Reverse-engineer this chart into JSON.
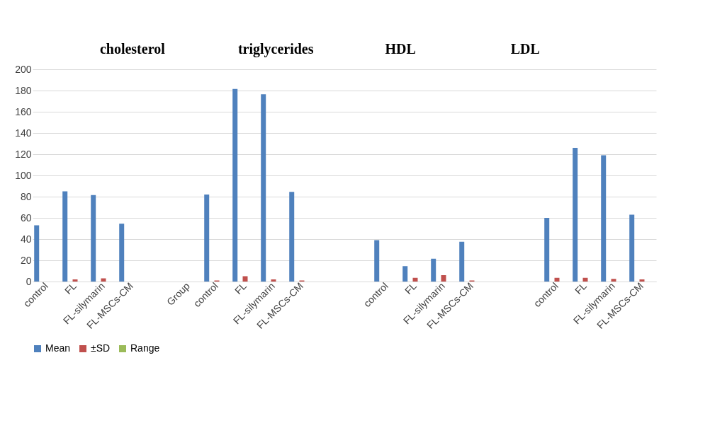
{
  "chart_data": {
    "type": "bar",
    "categories": [
      "control",
      "FL",
      "FL-silymarin",
      "FL-MSCs-CM",
      null,
      "Group",
      "control",
      "FL",
      "FL-silymarin",
      "FL-MSCs-CM",
      null,
      null,
      "control",
      "FL",
      "FL-silymarin",
      "FL-MSCs-CM",
      null,
      null,
      "control",
      "FL",
      "FL-silymarin",
      "FL-MSCs-CM"
    ],
    "series": [
      {
        "name": "Mean",
        "color": "#4f81bd",
        "values": [
          53,
          85,
          81.5,
          54.5,
          null,
          null,
          82,
          181.5,
          176.5,
          84.5,
          null,
          null,
          39,
          14.5,
          21.5,
          37.5,
          null,
          null,
          60,
          126,
          119,
          63
        ]
      },
      {
        "name": "±SD",
        "color": "#c0504d",
        "values": [
          null,
          2,
          3,
          null,
          null,
          null,
          1,
          5,
          2,
          1,
          null,
          null,
          null,
          3.5,
          6,
          1,
          null,
          null,
          3.5,
          3.5,
          2.5,
          2
        ]
      },
      {
        "name": "Range",
        "color": "#9bbb59",
        "values": [
          null,
          null,
          null,
          null,
          null,
          null,
          null,
          null,
          null,
          null,
          null,
          null,
          null,
          null,
          null,
          null,
          null,
          null,
          null,
          null,
          null,
          null
        ]
      }
    ],
    "annotations": [
      "cholesterol",
      "triglycerides",
      "HDL",
      "LDL"
    ],
    "ylim": [
      0,
      200
    ],
    "yticks": [
      0,
      20,
      40,
      60,
      80,
      100,
      120,
      140,
      160,
      180,
      200
    ],
    "grid": "y",
    "legend": "bottom"
  }
}
